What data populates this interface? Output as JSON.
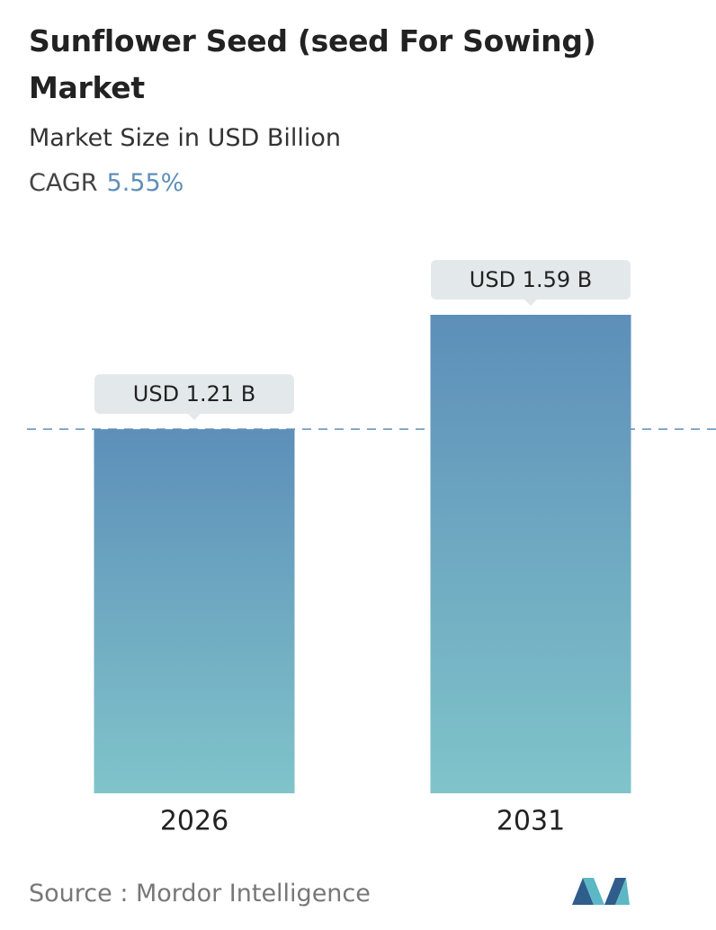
{
  "chart_data": {
    "type": "bar",
    "title": "Sunflower Seed (seed For Sowing) Market",
    "subtitle": "Market Size in USD Billion",
    "cagr_label": "CAGR",
    "cagr": "5.55%",
    "categories": [
      "2026",
      "2031"
    ],
    "values": [
      1.21,
      1.59
    ],
    "value_labels": [
      "USD 1.21 B",
      "USD 1.59 B"
    ],
    "color_top": "#5d8fb9",
    "color_bottom": "#80c4ca",
    "source": "Source :  Mordor Intelligence"
  }
}
